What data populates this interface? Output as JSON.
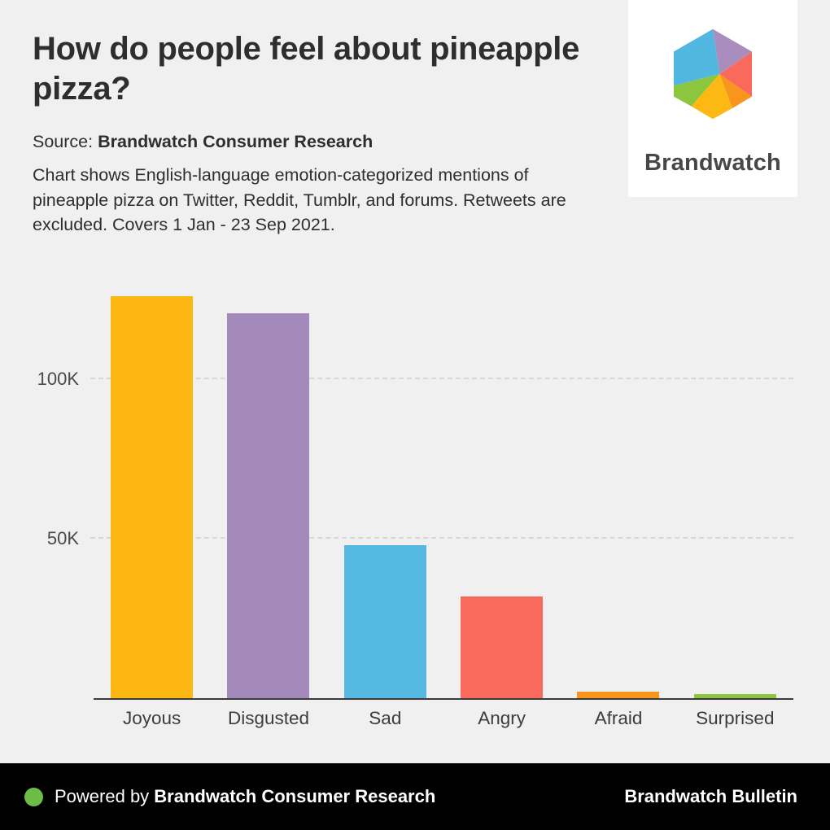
{
  "header": {
    "title": "How do people feel about pineapple pizza?",
    "source_label": "Source:",
    "source_value": "Brandwatch Consumer Research",
    "description": "Chart shows English-language emotion-categorized mentions of pineapple pizza on Twitter, Reddit, Tumblr, and forums. Retweets are excluded. Covers 1 Jan - 23 Sep 2021.",
    "logo_text": "Brandwatch",
    "logo_facets": [
      "#52b7e0",
      "#8cc63e",
      "#fdb813",
      "#f8951d",
      "#f9695c",
      "#a98ebd"
    ]
  },
  "chart_data": {
    "type": "bar",
    "categories": [
      "Joyous",
      "Disgusted",
      "Sad",
      "Angry",
      "Afraid",
      "Surprised"
    ],
    "values": [
      126000,
      120500,
      48000,
      31800,
      2000,
      1300
    ],
    "bar_colors": [
      "#fcb713",
      "#a48abb",
      "#55b8e0",
      "#f9695c",
      "#f8951d",
      "#8cc63e"
    ],
    "title": "How do people feel about pineapple pizza?",
    "xlabel": "",
    "ylabel": "",
    "ylim": [
      0,
      131500
    ],
    "yticks": [
      {
        "value": 50000,
        "label": "50K"
      },
      {
        "value": 100000,
        "label": "100K"
      }
    ],
    "grid": "horizontal-dashed",
    "legend": "none"
  },
  "footer": {
    "powered_by_prefix": "Powered by ",
    "powered_by_value": "Brandwatch Consumer Research",
    "right_text": "Brandwatch Bulletin",
    "dot_color": "#6cbd45"
  },
  "colors": {
    "page_background": "#f0f0f1",
    "footer_background": "#000000",
    "axis_line": "#3b3b3b",
    "gridline": "#d7d7d7",
    "text_primary": "#2e2e2e"
  }
}
